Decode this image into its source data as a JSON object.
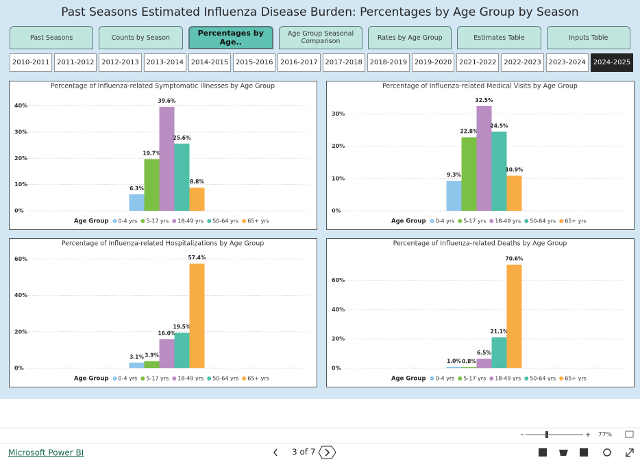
{
  "header": {
    "title": "Past Seasons Estimated Influenza Disease Burden: Percentages by Age Group by Season"
  },
  "tabs": [
    {
      "label": "Past Seasons"
    },
    {
      "label": "Counts by Season"
    },
    {
      "label": "Percentages by Age..",
      "selected": true
    },
    {
      "label": "Age Group Seasonal Comparison"
    },
    {
      "label": "Rates by Age Group"
    },
    {
      "label": "Estimates Table"
    },
    {
      "label": "Inputs Table"
    }
  ],
  "seasons": [
    {
      "label": "2010-2011"
    },
    {
      "label": "2011-2012"
    },
    {
      "label": "2012-2013"
    },
    {
      "label": "2013-2014"
    },
    {
      "label": "2014-2015"
    },
    {
      "label": "2015-2016"
    },
    {
      "label": "2016-2017"
    },
    {
      "label": "2017-2018"
    },
    {
      "label": "2018-2019"
    },
    {
      "label": "2019-2020"
    },
    {
      "label": "2021-2022"
    },
    {
      "label": "2022-2023"
    },
    {
      "label": "2023-2024"
    },
    {
      "label": "2024-2025",
      "selected": true
    }
  ],
  "chart_data": [
    {
      "type": "bar",
      "title": "Percentage of Influenza-related Symptomatic Illnesses by Age Group",
      "legend_title": "Age Group",
      "grid": true,
      "ylim": [
        0,
        43
      ],
      "yticks": [
        {
          "value": 0,
          "label": "0%"
        },
        {
          "value": 10,
          "label": "10%"
        },
        {
          "value": 20,
          "label": "20%"
        },
        {
          "value": 30,
          "label": "30%"
        },
        {
          "value": 40,
          "label": "40%"
        }
      ],
      "series": [
        {
          "name": "0-4 yrs",
          "color": "#8fc7ec",
          "values": [
            6.3
          ],
          "value_labels": [
            "6.3%"
          ]
        },
        {
          "name": "5-17 yrs",
          "color": "#7cbf45",
          "values": [
            19.7
          ],
          "value_labels": [
            "19.7%"
          ]
        },
        {
          "name": "18-49 yrs",
          "color": "#b98cc2",
          "values": [
            39.6
          ],
          "value_labels": [
            "39.6%"
          ]
        },
        {
          "name": "50-64 yrs",
          "color": "#4fbfa9",
          "values": [
            25.6
          ],
          "value_labels": [
            "25.6%"
          ]
        },
        {
          "name": "65+ yrs",
          "color": "#f9ad45",
          "values": [
            8.8
          ],
          "value_labels": [
            "8.8%"
          ]
        }
      ]
    },
    {
      "type": "bar",
      "title": "Percentage of Influenza-related Medical Visits by Age Group",
      "legend_title": "Age Group",
      "grid": true,
      "ylim": [
        0,
        35
      ],
      "yticks": [
        {
          "value": 0,
          "label": "0%"
        },
        {
          "value": 10,
          "label": "10%"
        },
        {
          "value": 20,
          "label": "20%"
        },
        {
          "value": 30,
          "label": "30%"
        }
      ],
      "series": [
        {
          "name": "0-4 yrs",
          "color": "#8fc7ec",
          "values": [
            9.3
          ],
          "value_labels": [
            "9.3%"
          ]
        },
        {
          "name": "5-17 yrs",
          "color": "#7cbf45",
          "values": [
            22.8
          ],
          "value_labels": [
            "22.8%"
          ]
        },
        {
          "name": "18-49 yrs",
          "color": "#b98cc2",
          "values": [
            32.5
          ],
          "value_labels": [
            "32.5%"
          ]
        },
        {
          "name": "50-64 yrs",
          "color": "#4fbfa9",
          "values": [
            24.5
          ],
          "value_labels": [
            "24.5%"
          ]
        },
        {
          "name": "65+ yrs",
          "color": "#f9ad45",
          "values": [
            10.9
          ],
          "value_labels": [
            "10.9%"
          ]
        }
      ]
    },
    {
      "type": "bar",
      "title": "Percentage of Influenza-related Hospitalizations by Age Group",
      "legend_title": "Age Group",
      "grid": true,
      "ylim": [
        0,
        62
      ],
      "yticks": [
        {
          "value": 0,
          "label": "0%"
        },
        {
          "value": 20,
          "label": "20%"
        },
        {
          "value": 40,
          "label": "40%"
        },
        {
          "value": 60,
          "label": "60%"
        }
      ],
      "series": [
        {
          "name": "0-4 yrs",
          "color": "#8fc7ec",
          "values": [
            3.1
          ],
          "value_labels": [
            "3.1%"
          ]
        },
        {
          "name": "5-17 yrs",
          "color": "#7cbf45",
          "values": [
            3.9
          ],
          "value_labels": [
            "3.9%"
          ]
        },
        {
          "name": "18-49 yrs",
          "color": "#b98cc2",
          "values": [
            16.0
          ],
          "value_labels": [
            "16.0%"
          ]
        },
        {
          "name": "50-64 yrs",
          "color": "#4fbfa9",
          "values": [
            19.5
          ],
          "value_labels": [
            "19.5%"
          ]
        },
        {
          "name": "65+ yrs",
          "color": "#f9ad45",
          "values": [
            57.4
          ],
          "value_labels": [
            "57.4%"
          ]
        }
      ]
    },
    {
      "type": "bar",
      "title": "Percentage of Influenza-related Deaths by Age Group",
      "legend_title": "Age Group",
      "grid": true,
      "ylim": [
        0,
        77
      ],
      "yticks": [
        {
          "value": 0,
          "label": "0%"
        },
        {
          "value": 20,
          "label": "20%"
        },
        {
          "value": 40,
          "label": "40%"
        },
        {
          "value": 60,
          "label": "60%"
        }
      ],
      "series": [
        {
          "name": "0-4 yrs",
          "color": "#8fc7ec",
          "values": [
            1.0
          ],
          "value_labels": [
            "1.0%"
          ]
        },
        {
          "name": "5-17 yrs",
          "color": "#7cbf45",
          "values": [
            0.8
          ],
          "value_labels": [
            "0.8%"
          ]
        },
        {
          "name": "18-49 yrs",
          "color": "#b98cc2",
          "values": [
            6.5
          ],
          "value_labels": [
            "6.5%"
          ]
        },
        {
          "name": "50-64 yrs",
          "color": "#4fbfa9",
          "values": [
            21.1
          ],
          "value_labels": [
            "21.1%"
          ]
        },
        {
          "name": "65+ yrs",
          "color": "#f9ad45",
          "values": [
            70.6
          ],
          "value_labels": [
            "70.6%"
          ]
        }
      ]
    }
  ],
  "footer": {
    "link": "Microsoft Power BI",
    "page": "3 of 7",
    "zoom": "77%"
  }
}
